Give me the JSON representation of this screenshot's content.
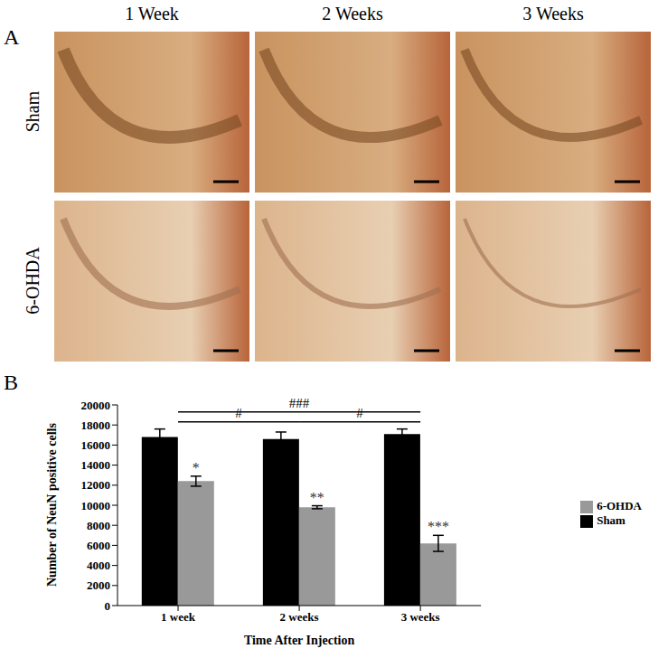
{
  "panel_a": {
    "label": "A",
    "columns": [
      "1 Week",
      "2 Weeks",
      "3 Weeks"
    ],
    "rows": [
      "Sham",
      "6-OHDA"
    ]
  },
  "panel_b_label": "B",
  "chart_data": {
    "type": "bar",
    "categories": [
      "1 week",
      "2 weeks",
      "3 weeks"
    ],
    "x_label": "Time After Injection",
    "y_label": "Number of NeuN positive cells",
    "ylim": [
      0,
      20000
    ],
    "yticks": [
      0,
      2000,
      4000,
      6000,
      8000,
      10000,
      12000,
      14000,
      16000,
      18000,
      20000
    ],
    "grid": false,
    "legend": "right",
    "series": [
      {
        "name": "Sham",
        "color": "#000000",
        "values": [
          16800,
          16600,
          17100
        ],
        "errors": [
          800,
          700,
          500
        ]
      },
      {
        "name": "6-OHDA",
        "color": "#999999",
        "values": [
          12400,
          9800,
          6200
        ],
        "errors": [
          500,
          150,
          800
        ],
        "annotations": [
          "*",
          "**",
          "***"
        ]
      }
    ],
    "brackets": [
      {
        "from": "1 week",
        "to": "3 weeks",
        "label": "###"
      },
      {
        "from": "1 week",
        "to": "2 weeks",
        "label": "#"
      },
      {
        "from": "2 weeks",
        "to": "3 weeks",
        "label": "#"
      }
    ]
  }
}
